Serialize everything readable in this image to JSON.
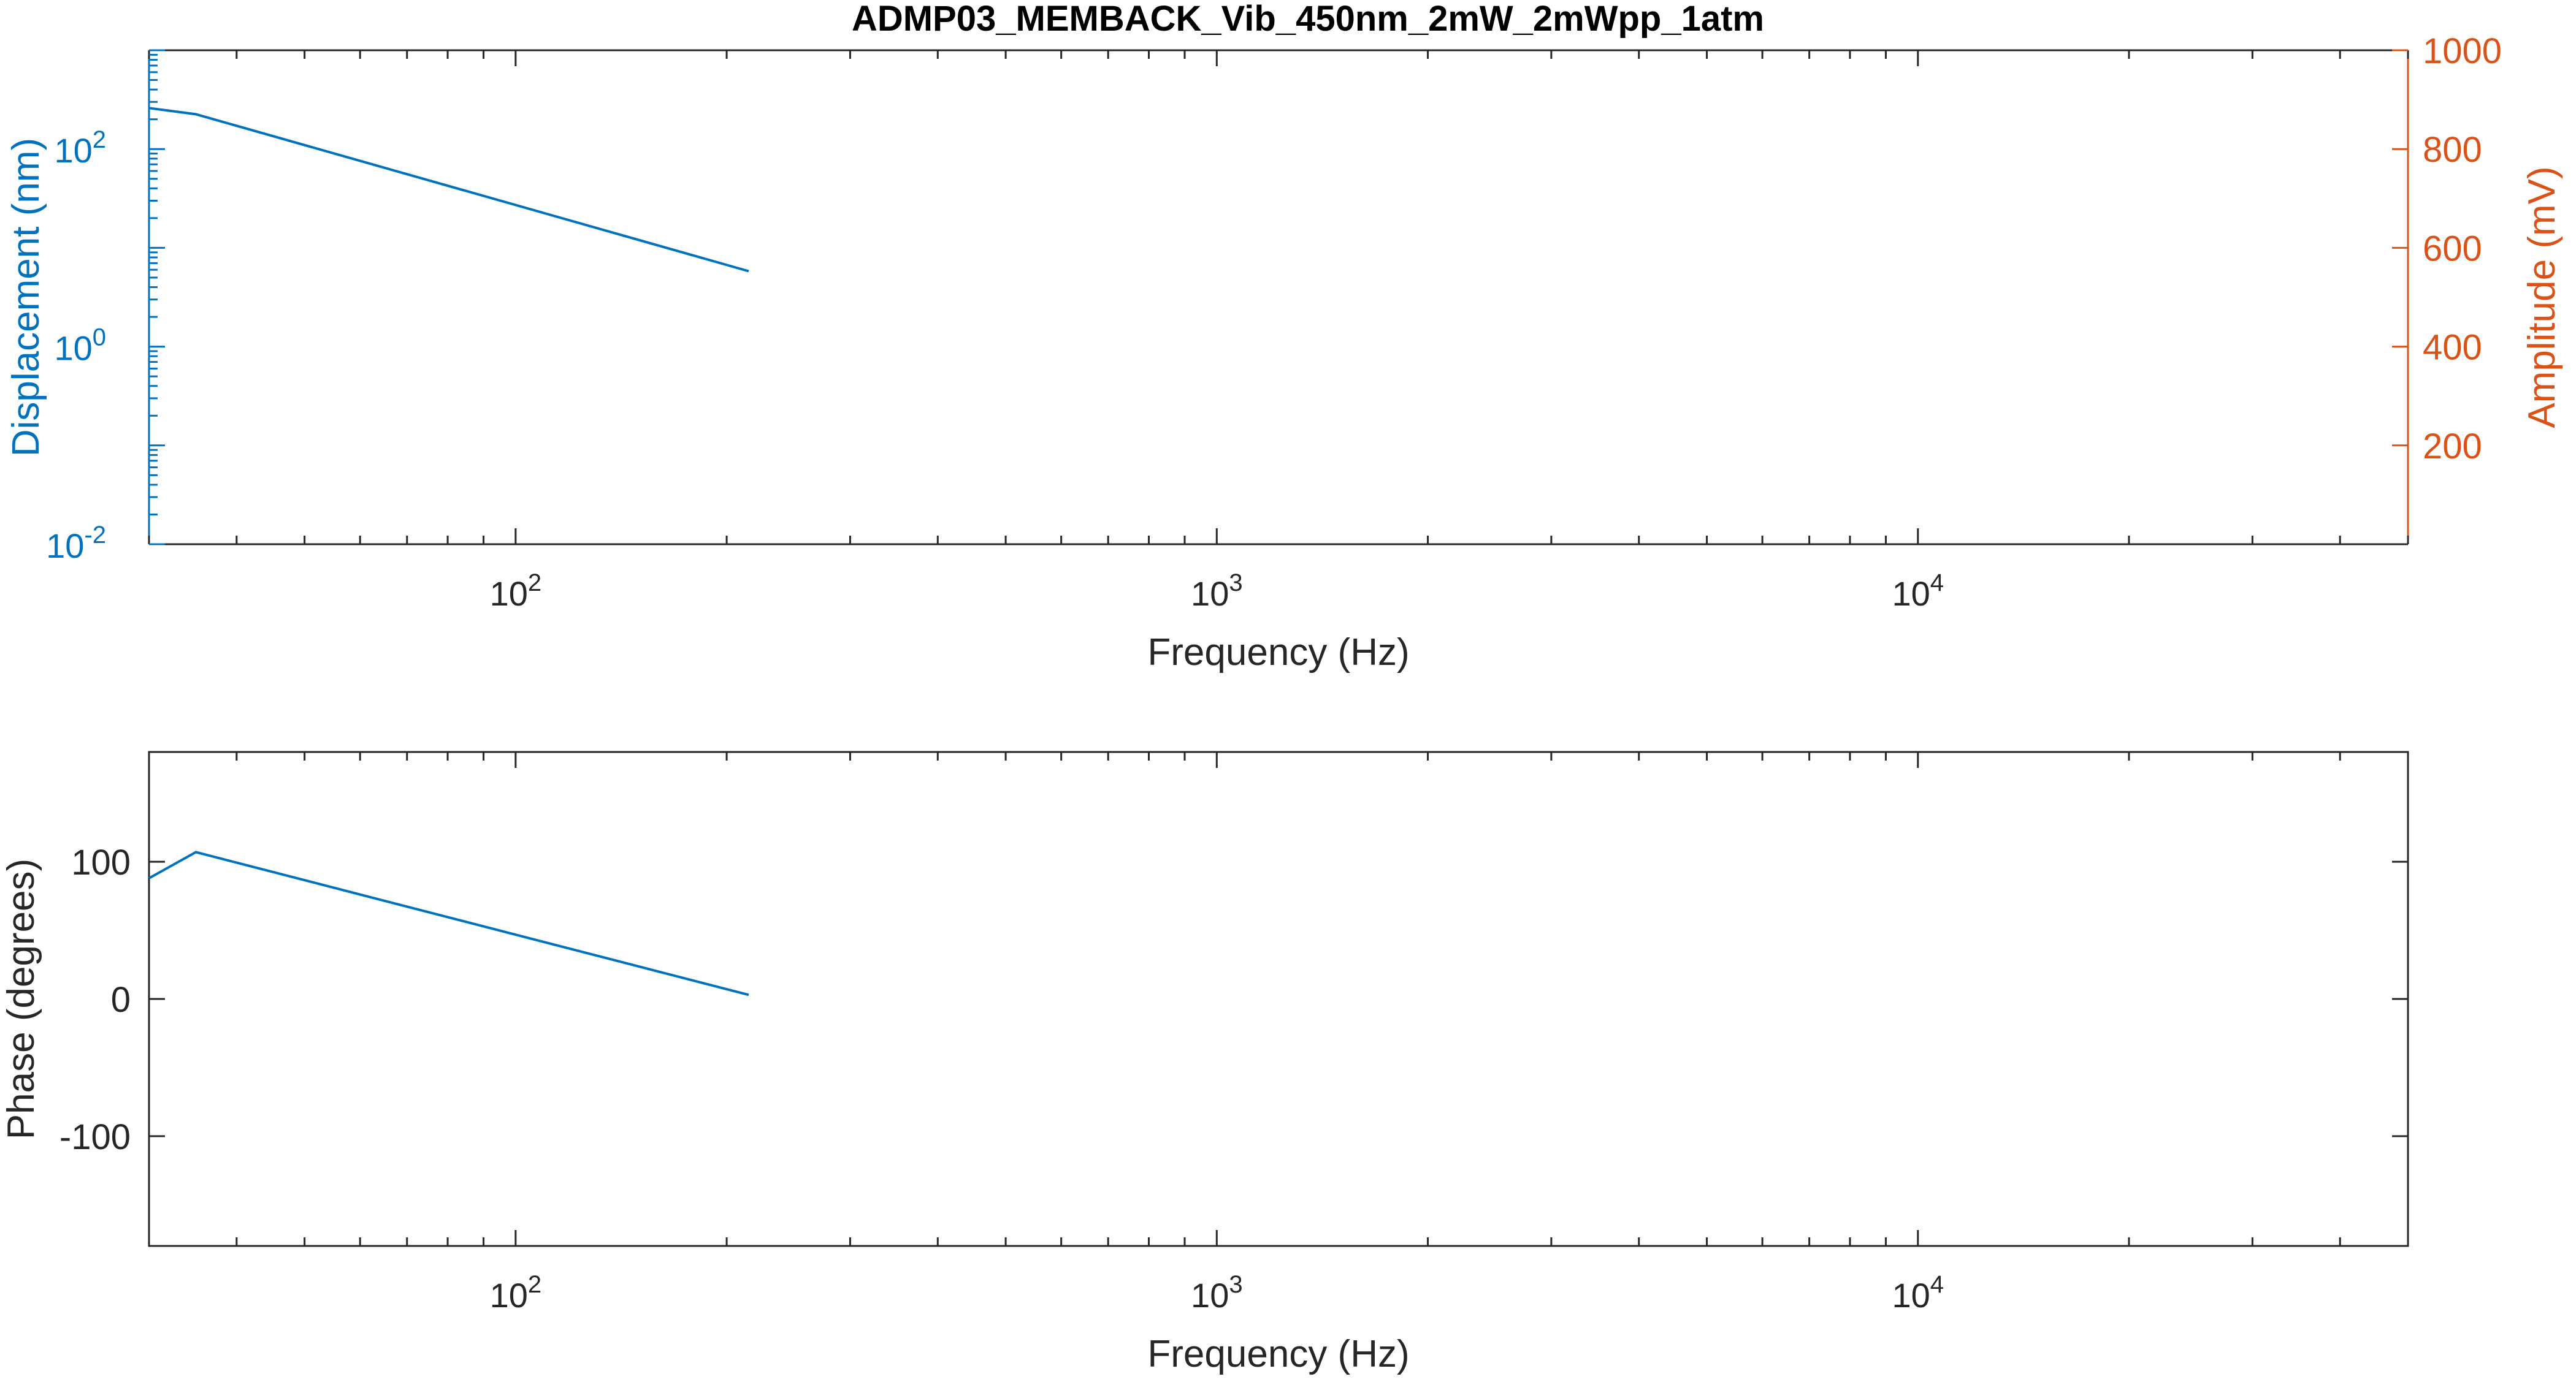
{
  "title": "ADMP03_MEMBACK_Vib_450nm_2mW_2mWpp_1atm",
  "colors": {
    "blue": "#0072BD",
    "orange": "#D95319",
    "axis": "#262626",
    "frame": "#262626"
  },
  "chart_data": [
    {
      "type": "line",
      "title": "ADMP03_MEMBACK_Vib_450nm_2mW_2mWpp_1atm",
      "xlabel": "Frequency (Hz)",
      "ylabel": "Displacement (nm)",
      "ylabel_right": "Amplitude (mV)",
      "xscale": "log",
      "yscale": "log",
      "xlim": [
        30,
        50000
      ],
      "ylim": [
        0.01,
        1000
      ],
      "ylim_right": [
        0,
        1000
      ],
      "xticks": [
        {
          "base": "10",
          "exp": "2"
        },
        {
          "base": "10",
          "exp": "3"
        },
        {
          "base": "10",
          "exp": "4"
        }
      ],
      "yticks": [
        {
          "base": "10",
          "exp": "-2"
        },
        {
          "base": "10",
          "exp": "0"
        },
        {
          "base": "10",
          "exp": "2"
        }
      ],
      "yticks_right": [
        "200",
        "400",
        "600",
        "800",
        "1000"
      ],
      "grid": false,
      "series": [
        {
          "x": [
            30,
            35,
            215
          ],
          "y": [
            260,
            225,
            5.8
          ]
        }
      ]
    },
    {
      "type": "line",
      "xlabel": "Frequency (Hz)",
      "ylabel": "Phase (degrees)",
      "xscale": "log",
      "xlim": [
        30,
        50000
      ],
      "ylim": [
        -180,
        180
      ],
      "xticks": [
        {
          "base": "10",
          "exp": "2"
        },
        {
          "base": "10",
          "exp": "3"
        },
        {
          "base": "10",
          "exp": "4"
        }
      ],
      "yticks": [
        "-100",
        "0",
        "100"
      ],
      "grid": false,
      "series": [
        {
          "x": [
            30,
            35,
            215
          ],
          "y": [
            88,
            107,
            3
          ]
        }
      ]
    }
  ]
}
